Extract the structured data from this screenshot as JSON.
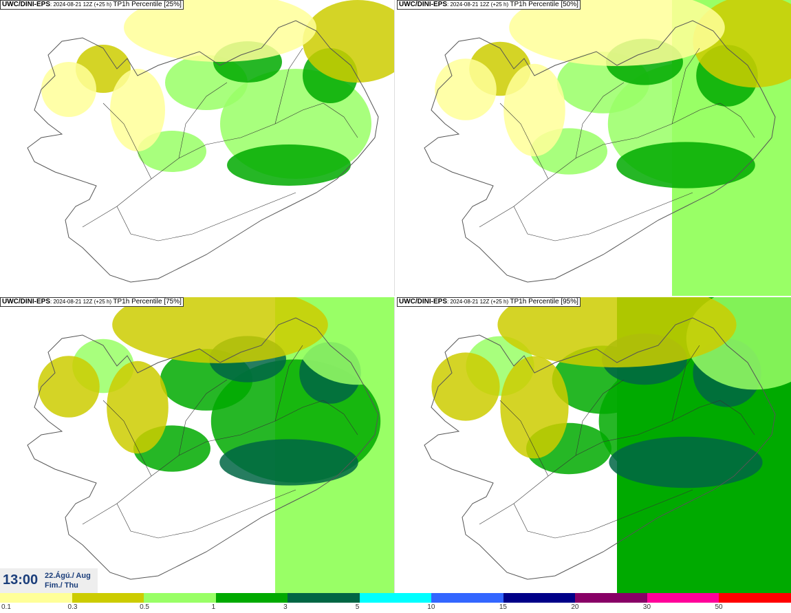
{
  "panels": [
    {
      "model": "UWC/DINI-EPS",
      "run": "2024-08-21 12Z (+25 h)",
      "label": "TP1h Percentile [25%]",
      "percentile": 25
    },
    {
      "model": "UWC/DINI-EPS",
      "run": "2024-08-21 12Z (+25 h)",
      "label": "TP1h Percentile [50%]",
      "percentile": 50
    },
    {
      "model": "UWC/DINI-EPS",
      "run": "2024-08-21 12Z (+25 h)",
      "label": "TP1h Percentile [75%]",
      "percentile": 75
    },
    {
      "model": "UWC/DINI-EPS",
      "run": "2024-08-21 12Z (+25 h)",
      "label": "TP1h Percentile [95%]",
      "percentile": 95
    }
  ],
  "valid_time": {
    "time": "13:00",
    "date": "22.Ágú./ Aug",
    "weekday": "Fim./ Thu"
  },
  "legend": {
    "ticks": [
      "0.1",
      "0.3",
      "0.5",
      "1",
      "3",
      "5",
      "10",
      "15",
      "20",
      "30",
      "50"
    ],
    "colors": [
      "#ffff99",
      "#cccc00",
      "#99ff66",
      "#00aa00",
      "#006644",
      "#00ffff",
      "#3366ff",
      "#000088",
      "#880066",
      "#ff0099",
      "#ff0000"
    ]
  },
  "map_colors": {
    "land_outline": "#555555",
    "roads": "#333333"
  }
}
